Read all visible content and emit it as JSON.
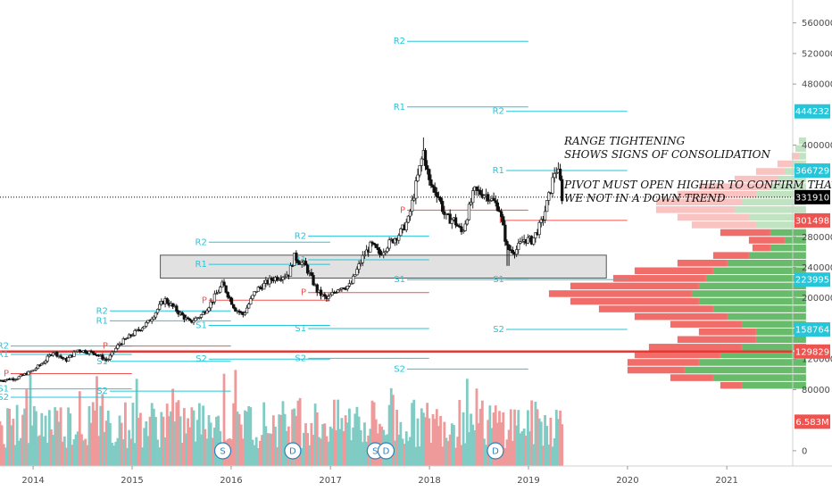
{
  "chart_data": {
    "type": "candlestick",
    "symbol_hint": "weekly price with volume, pivot levels and volume profile",
    "x_range": [
      "2013-09-01",
      "2021-09-01"
    ],
    "y_range": [
      -20000,
      590000
    ],
    "x_ticks": [
      {
        "date": "2014-01-01",
        "label": "2014"
      },
      {
        "date": "2015-01-01",
        "label": "2015"
      },
      {
        "date": "2016-01-01",
        "label": "2016"
      },
      {
        "date": "2017-01-01",
        "label": "2017"
      },
      {
        "date": "2018-01-01",
        "label": "2018"
      },
      {
        "date": "2019-01-01",
        "label": "2019"
      },
      {
        "date": "2020-01-01",
        "label": "2020"
      },
      {
        "date": "2021-01-01",
        "label": "2021"
      }
    ],
    "y_ticks": [
      {
        "value": 560000,
        "label": "560000"
      },
      {
        "value": 520000,
        "label": "520000"
      },
      {
        "value": 480000,
        "label": "480000"
      },
      {
        "value": 400000,
        "label": "400000"
      },
      {
        "value": 280000,
        "label": "280000"
      },
      {
        "value": 240000,
        "label": "240000"
      },
      {
        "value": 200000,
        "label": "200000"
      },
      {
        "value": 120000,
        "label": "120000"
      },
      {
        "value": 80000,
        "label": "80000"
      },
      {
        "value": 0,
        "label": "0"
      }
    ],
    "price_tags": [
      {
        "value": 444232,
        "label": "444232",
        "color": "#26c6da"
      },
      {
        "value": 366729,
        "label": "366729",
        "color": "#26c6da"
      },
      {
        "value": 331910,
        "label": "331910",
        "color": "#000000"
      },
      {
        "value": 301498,
        "label": "301498",
        "color": "#ef5350"
      },
      {
        "value": 223995,
        "label": "223995",
        "color": "#26c6da"
      },
      {
        "value": 158764,
        "label": "158764",
        "color": "#26c6da"
      },
      {
        "value": 129829,
        "label": "129829",
        "color": "#ef5350"
      },
      {
        "value": 38000,
        "label": "6.583M",
        "color": "#ef5350"
      }
    ],
    "last_price": 331910,
    "price_path": [
      [
        "2013-09-01",
        92000
      ],
      [
        "2013-11-01",
        95000
      ],
      [
        "2014-01-01",
        105000
      ],
      [
        "2014-02-15",
        118000
      ],
      [
        "2014-03-15",
        130000
      ],
      [
        "2014-05-01",
        118000
      ],
      [
        "2014-06-15",
        132000
      ],
      [
        "2014-08-15",
        128000
      ],
      [
        "2014-10-01",
        118000
      ],
      [
        "2014-11-15",
        140000
      ],
      [
        "2015-01-01",
        152000
      ],
      [
        "2015-03-01",
        168000
      ],
      [
        "2015-05-01",
        198000
      ],
      [
        "2015-06-01",
        188000
      ],
      [
        "2015-08-01",
        168000
      ],
      [
        "2015-09-15",
        178000
      ],
      [
        "2015-10-15",
        192000
      ],
      [
        "2015-12-01",
        218000
      ],
      [
        "2016-01-15",
        186000
      ],
      [
        "2016-02-15",
        178000
      ],
      [
        "2016-04-01",
        210000
      ],
      [
        "2016-06-01",
        225000
      ],
      [
        "2016-08-01",
        232000
      ],
      [
        "2016-08-20",
        254000
      ],
      [
        "2016-10-01",
        242000
      ],
      [
        "2016-11-15",
        208000
      ],
      [
        "2016-12-20",
        198000
      ],
      [
        "2017-02-01",
        214000
      ],
      [
        "2017-03-15",
        216000
      ],
      [
        "2017-05-01",
        254000
      ],
      [
        "2017-06-01",
        270000
      ],
      [
        "2017-07-01",
        257000
      ],
      [
        "2017-08-01",
        270000
      ],
      [
        "2017-09-15",
        285000
      ],
      [
        "2017-10-15",
        302000
      ],
      [
        "2017-11-15",
        352000
      ],
      [
        "2017-12-10",
        392000
      ],
      [
        "2018-01-01",
        350000
      ],
      [
        "2018-02-01",
        336000
      ],
      [
        "2018-03-01",
        305000
      ],
      [
        "2018-04-01",
        302000
      ],
      [
        "2018-05-01",
        285000
      ],
      [
        "2018-06-15",
        340000
      ],
      [
        "2018-08-01",
        335000
      ],
      [
        "2018-09-15",
        318000
      ],
      [
        "2018-10-15",
        264000
      ],
      [
        "2018-11-15",
        262000
      ],
      [
        "2018-12-15",
        277000
      ],
      [
        "2019-01-15",
        275000
      ],
      [
        "2019-02-20",
        300000
      ],
      [
        "2019-03-20",
        336000
      ],
      [
        "2019-04-10",
        370000
      ],
      [
        "2019-04-25",
        360000
      ],
      [
        "2019-05-05",
        331910
      ]
    ],
    "volume_profile": {
      "right_edge_value": "2021-10-20",
      "rows": [
        {
          "price": 405000,
          "up": 0.02,
          "down": 0.0
        },
        {
          "price": 395000,
          "up": 0.03,
          "down": 0.0
        },
        {
          "price": 385000,
          "up": 0.02,
          "down": 0.02
        },
        {
          "price": 375000,
          "up": 0.04,
          "down": 0.04
        },
        {
          "price": 365000,
          "up": 0.06,
          "down": 0.08
        },
        {
          "price": 355000,
          "up": 0.08,
          "down": 0.12
        },
        {
          "price": 345000,
          "up": 0.1,
          "down": 0.2
        },
        {
          "price": 335000,
          "up": 0.14,
          "down": 0.22
        },
        {
          "price": 325000,
          "up": 0.18,
          "down": 0.24
        },
        {
          "price": 315000,
          "up": 0.2,
          "down": 0.22
        },
        {
          "price": 305000,
          "up": 0.16,
          "down": 0.2
        },
        {
          "price": 295000,
          "up": 0.14,
          "down": 0.18
        },
        {
          "price": 285000,
          "up": 0.1,
          "down": 0.14
        },
        {
          "price": 275000,
          "up": 0.06,
          "down": 0.1
        },
        {
          "price": 265000,
          "up": 0.1,
          "down": 0.05
        },
        {
          "price": 255000,
          "up": 0.16,
          "down": 0.1
        },
        {
          "price": 245000,
          "up": 0.22,
          "down": 0.14
        },
        {
          "price": 235000,
          "up": 0.26,
          "down": 0.22
        },
        {
          "price": 225000,
          "up": 0.28,
          "down": 0.26
        },
        {
          "price": 215000,
          "up": 0.3,
          "down": 0.36
        },
        {
          "price": 205000,
          "up": 0.32,
          "down": 0.4
        },
        {
          "price": 195000,
          "up": 0.3,
          "down": 0.36
        },
        {
          "price": 185000,
          "up": 0.26,
          "down": 0.32
        },
        {
          "price": 175000,
          "up": 0.22,
          "down": 0.26
        },
        {
          "price": 165000,
          "up": 0.18,
          "down": 0.2
        },
        {
          "price": 155000,
          "up": 0.14,
          "down": 0.16
        },
        {
          "price": 145000,
          "up": 0.14,
          "down": 0.22
        },
        {
          "price": 135000,
          "up": 0.18,
          "down": 0.26
        },
        {
          "price": 125000,
          "up": 0.24,
          "down": 0.24
        },
        {
          "price": 115000,
          "up": 0.3,
          "down": 0.2
        },
        {
          "price": 105000,
          "up": 0.34,
          "down": 0.16
        },
        {
          "price": 95000,
          "up": 0.26,
          "down": 0.12
        },
        {
          "price": 85000,
          "up": 0.18,
          "down": 0.06
        }
      ]
    },
    "consolidation_box": {
      "from": "2015-04-15",
      "to": "2019-10-15",
      "low": 226000,
      "high": 256000
    },
    "horizontal_lines": [
      {
        "value": 331910,
        "style": "dotted",
        "color": "#000000"
      },
      {
        "value": 129829,
        "style": "solid",
        "color": "#e53935"
      }
    ],
    "pivots": [
      {
        "from": "2013-09-01",
        "to": "2014-12-31",
        "R2": 137000,
        "R1": 126000,
        "P": 101000,
        "S1": 81000,
        "S2": 70000
      },
      {
        "from": "2014-09-01",
        "to": "2015-12-31",
        "R2": 183000,
        "R1": 170000,
        "P": 137000,
        "S1": 117000,
        "S2": 78000
      },
      {
        "from": "2015-09-01",
        "to": "2016-12-31",
        "R2": 273000,
        "R1": 244000,
        "P": 197000,
        "S1": 164000,
        "S2": 120000
      },
      {
        "from": "2016-09-01",
        "to": "2017-12-31",
        "R2": 281000,
        "R1": 250000,
        "P": 207000,
        "S1": 160000,
        "S2": 121000
      },
      {
        "from": "2017-09-01",
        "to": "2018-12-31",
        "R2": 536000,
        "R1": 450000,
        "P": 315000,
        "S1": 223995,
        "S2": 107000
      },
      {
        "from": "2018-09-01",
        "to": "2019-12-31",
        "R2": 444232,
        "R1": 366729,
        "P": 301498,
        "S1": 223995,
        "S2": 158764
      }
    ],
    "events": [
      {
        "date": "2015-12-01",
        "label": "S"
      },
      {
        "date": "2016-08-15",
        "label": "D"
      },
      {
        "date": "2017-06-15",
        "label": "S"
      },
      {
        "date": "2017-07-25",
        "label": "D"
      },
      {
        "date": "2018-09-01",
        "label": "D"
      }
    ],
    "annotations": [
      {
        "lines": [
          "RANGE TIGHTENING",
          "SHOWS SIGNS OF CONSOLIDATION"
        ]
      },
      {
        "lines": [
          "PIVOT MUST OPEN HIGHER TO CONFIRM THAT",
          "WE NOT IN A DOWN TREND"
        ]
      }
    ],
    "colors": {
      "up": "#26a69a",
      "down": "#ef5350",
      "pivot": "#26c6da",
      "pivot_p": "#ef5350",
      "vol_up": "#80cbc4",
      "vol_down": "#ef9a9a",
      "profile_up": "#4caf50",
      "profile_down": "#ef5350"
    },
    "grid": false,
    "legend": "none"
  }
}
